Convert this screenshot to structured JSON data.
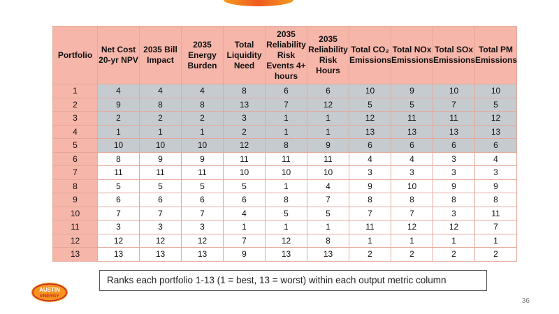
{
  "table": {
    "headers": [
      [
        "Portfolio"
      ],
      [
        "Net Cost",
        "20-yr NPV"
      ],
      [
        "2035 Bill",
        "Impact"
      ],
      [
        "2035",
        "Energy",
        "Burden"
      ],
      [
        "Total",
        "Liquidity",
        "Need"
      ],
      [
        "2035",
        "Reliability",
        "Risk",
        "Events 4+",
        "hours"
      ],
      [
        "2035",
        "Reliability",
        "Risk Hours"
      ],
      [
        "Total CO₂",
        "Emissions"
      ],
      [
        "Total NOx",
        "Emissions"
      ],
      [
        "Total SOx",
        "Emissions"
      ],
      [
        "Total PM",
        "Emissions"
      ]
    ],
    "rows": [
      [
        "1",
        "4",
        "4",
        "4",
        "8",
        "6",
        "6",
        "10",
        "9",
        "10",
        "10"
      ],
      [
        "2",
        "9",
        "8",
        "8",
        "13",
        "7",
        "12",
        "5",
        "5",
        "7",
        "5"
      ],
      [
        "3",
        "2",
        "2",
        "2",
        "3",
        "1",
        "1",
        "12",
        "11",
        "11",
        "12"
      ],
      [
        "4",
        "1",
        "1",
        "1",
        "2",
        "1",
        "1",
        "13",
        "13",
        "13",
        "13"
      ],
      [
        "5",
        "10",
        "10",
        "10",
        "12",
        "8",
        "9",
        "6",
        "6",
        "6",
        "6"
      ],
      [
        "6",
        "8",
        "9",
        "9",
        "11",
        "11",
        "11",
        "4",
        "4",
        "3",
        "4"
      ],
      [
        "7",
        "11",
        "11",
        "11",
        "10",
        "10",
        "10",
        "3",
        "3",
        "3",
        "3"
      ],
      [
        "8",
        "5",
        "5",
        "5",
        "5",
        "1",
        "4",
        "9",
        "10",
        "9",
        "9"
      ],
      [
        "9",
        "6",
        "6",
        "6",
        "6",
        "8",
        "7",
        "8",
        "8",
        "8",
        "8"
      ],
      [
        "10",
        "7",
        "7",
        "7",
        "4",
        "5",
        "5",
        "7",
        "7",
        "3",
        "11"
      ],
      [
        "11",
        "3",
        "3",
        "3",
        "1",
        "1",
        "1",
        "11",
        "12",
        "12",
        "7"
      ],
      [
        "12",
        "12",
        "12",
        "12",
        "7",
        "12",
        "8",
        "1",
        "1",
        "1",
        "1"
      ],
      [
        "13",
        "13",
        "13",
        "13",
        "9",
        "13",
        "13",
        "2",
        "2",
        "2",
        "2"
      ]
    ],
    "shaded_rows": [
      1,
      2,
      3,
      4,
      5
    ]
  },
  "note": "Ranks each portfolio 1-13 (1 = best, 13 = worst) within each output metric column",
  "logo": {
    "text_1": "AUSTIN",
    "text_2": "ENERGY",
    "icon": "austin-energy-logo"
  },
  "page_number": "36",
  "colors": {
    "header_bg": "#f6b6a9",
    "shaded_bg": "#c6cbd0",
    "border": "#e4a99b",
    "logo_orange": "#f7931e",
    "logo_red": "#c1272d"
  }
}
